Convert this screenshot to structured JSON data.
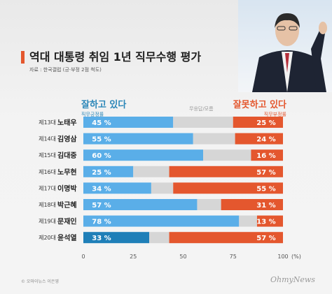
{
  "header": {
    "title": "역대 대통령 취임 1년 직무수행 평가",
    "source": "자료 : 한국갤럽 (긍·부정 2점 척도)"
  },
  "legend": {
    "positive_label": "잘하고 있다",
    "positive_sub": "직무긍정률",
    "neutral_sub": "무응답/모름",
    "negative_label": "잘못하고 있다",
    "negative_sub": "직무부정률"
  },
  "footer": {
    "copyright": "© 오마이뉴스 이은영",
    "logo": "OhmyNews"
  },
  "chart_data": {
    "type": "bar",
    "orientation": "horizontal",
    "stacked": true,
    "categories": [
      {
        "term": "제13대",
        "name": "노태우"
      },
      {
        "term": "제14대",
        "name": "김영삼"
      },
      {
        "term": "제15대",
        "name": "김대중"
      },
      {
        "term": "제16대",
        "name": "노무현"
      },
      {
        "term": "제17대",
        "name": "이명박"
      },
      {
        "term": "제18대",
        "name": "박근혜"
      },
      {
        "term": "제19대",
        "name": "문재인"
      },
      {
        "term": "제20대",
        "name": "윤석열"
      }
    ],
    "series": [
      {
        "name": "잘하고 있다",
        "values": [
          45,
          55,
          60,
          25,
          34,
          57,
          78,
          33
        ]
      },
      {
        "name": "무응답/모름",
        "values": [
          30,
          21,
          24,
          18,
          11,
          12,
          9,
          10
        ]
      },
      {
        "name": "잘못하고 있다",
        "values": [
          25,
          24,
          16,
          57,
          55,
          31,
          13,
          57
        ]
      }
    ],
    "value_suffix": "%",
    "x_ticks": [
      "0",
      "25",
      "50",
      "75",
      "100"
    ],
    "x_unit": "(%)",
    "xlim": [
      0,
      100
    ],
    "highlight_index": 7,
    "colors": {
      "positive": "#5aaee8",
      "positive_highlight": "#1f7fb8",
      "neutral": "#d6d6d6",
      "negative": "#e4572e",
      "label": "#ffffff"
    }
  }
}
